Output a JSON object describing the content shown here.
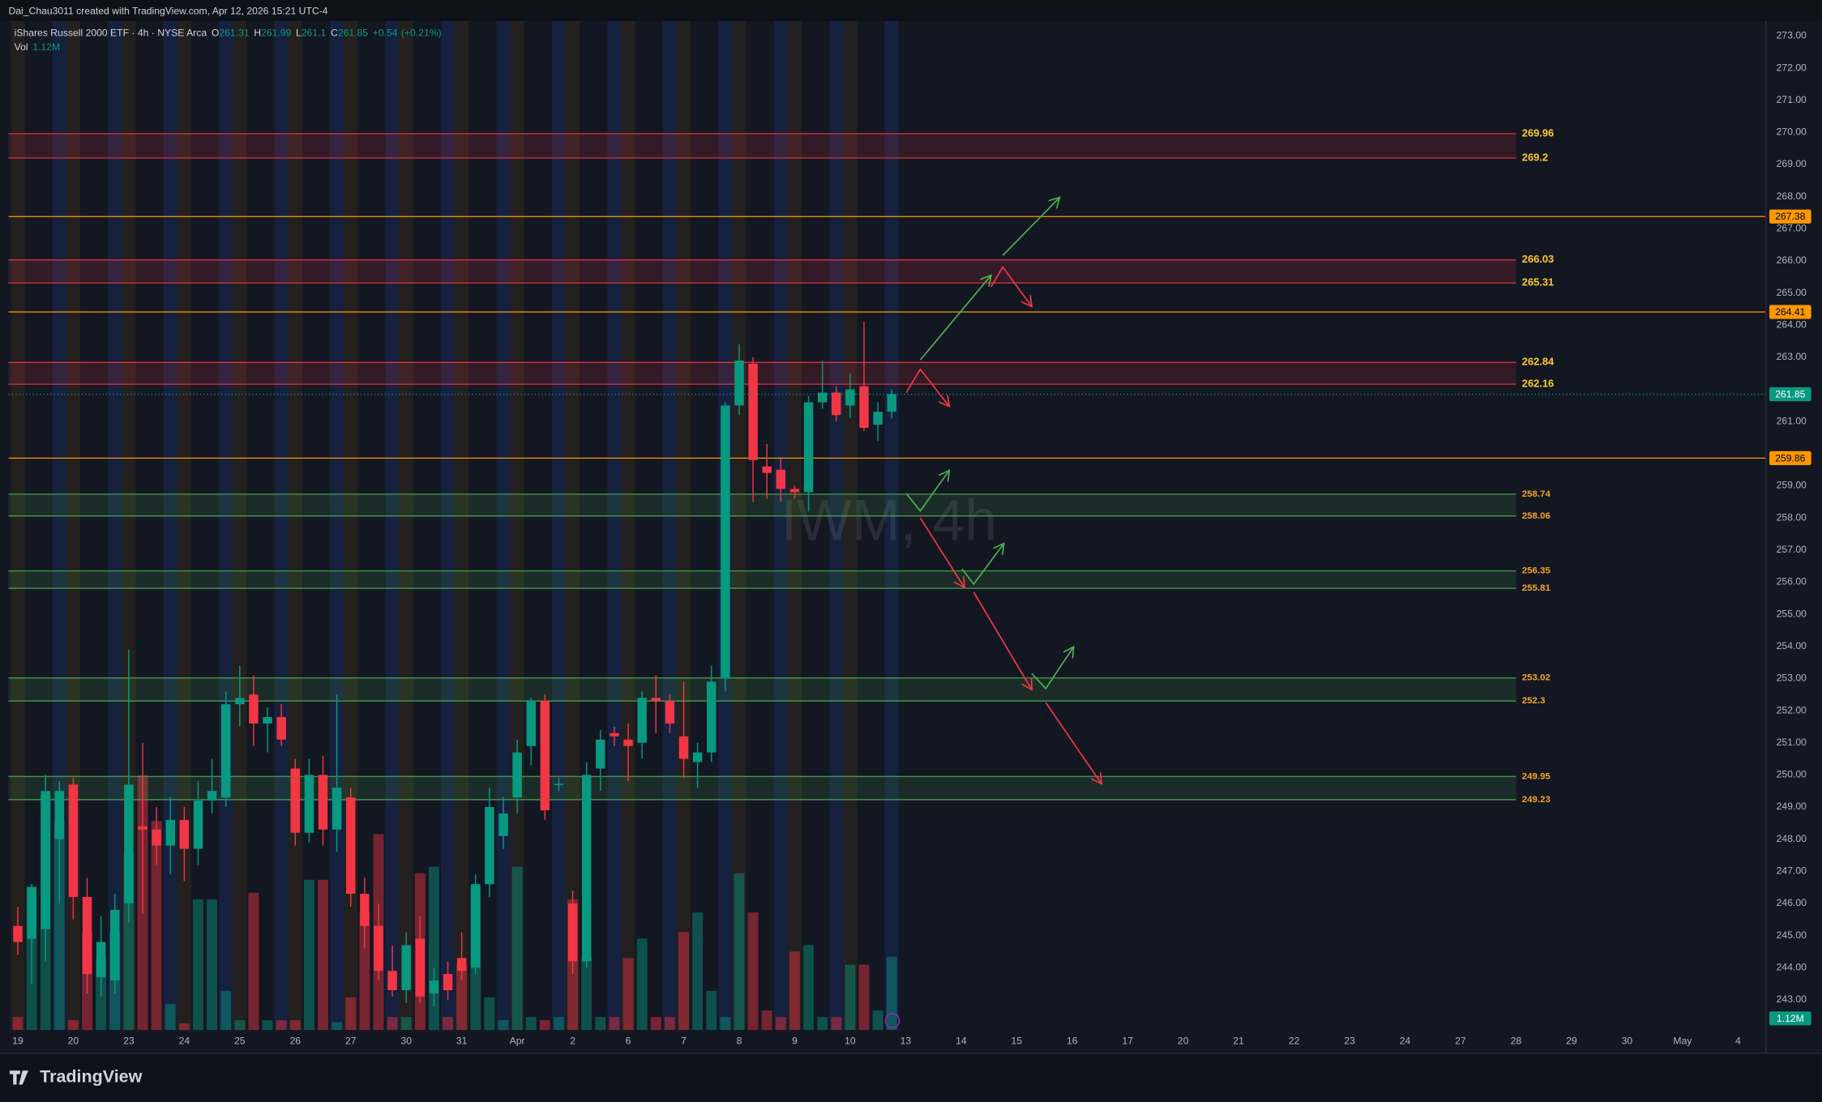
{
  "header": {
    "credit": "Dai_Chau3011 created with TradingView.com, Apr 12, 2026 15:21 UTC-4"
  },
  "footer": {
    "brand": "TradingView"
  },
  "chart_data": {
    "type": "candlestick",
    "title": "iShares Russell 2000 ETF · 4h · NYSE Arca",
    "watermark": "IWM, 4h",
    "legend_labels": [
      "O",
      "H",
      "L",
      "C"
    ],
    "change_label": "+0.54",
    "change_pct_label": "(+0.21%)",
    "volume_name": "Vol",
    "volume_label": "1.12M",
    "up_color": "#089981",
    "down_color": "#f23645",
    "x_labels": [
      "19",
      "20",
      "23",
      "24",
      "25",
      "26",
      "27",
      "30",
      "31",
      "Apr",
      "2",
      "6",
      "7",
      "8",
      "9",
      "10",
      "13",
      "14",
      "15",
      "16",
      "17",
      "20",
      "21",
      "22",
      "23",
      "24",
      "27",
      "28",
      "29",
      "30",
      "May",
      "4"
    ],
    "open": [
      245.3,
      244.9,
      245.2,
      248.0,
      249.7,
      246.2,
      243.7,
      243.6,
      246.0,
      248.4,
      248.3,
      247.8,
      248.6,
      247.7,
      249.2,
      249.3,
      252.2,
      252.5,
      251.6,
      251.8,
      250.2,
      248.2,
      250.0,
      248.3,
      249.3,
      246.3,
      245.3,
      243.9,
      243.3,
      244.9,
      243.2,
      243.8,
      244.3,
      244.0,
      246.6,
      248.1,
      249.3,
      250.9,
      252.3,
      249.68,
      246.0,
      244.2,
      250.2,
      251.3,
      251.1,
      251.0,
      252.4,
      252.3,
      251.2,
      250.4,
      250.7,
      253.0,
      261.5,
      262.8,
      259.6,
      259.5,
      258.9,
      258.8,
      261.6,
      261.9,
      261.5,
      262.1,
      260.9,
      261.31
    ],
    "high": [
      245.9,
      246.6,
      250.0,
      249.8,
      249.9,
      246.8,
      245.6,
      246.3,
      253.9,
      251.0,
      249.0,
      249.3,
      249.0,
      249.8,
      250.5,
      252.6,
      253.4,
      253.1,
      252.1,
      252.2,
      250.5,
      250.5,
      250.6,
      252.5,
      249.6,
      246.8,
      246.0,
      244.7,
      245.1,
      245.6,
      244.0,
      244.2,
      245.1,
      246.9,
      249.6,
      249.3,
      251.1,
      252.4,
      252.5,
      249.9,
      246.4,
      250.4,
      251.4,
      251.5,
      251.6,
      252.6,
      253.1,
      252.5,
      252.9,
      251.0,
      253.4,
      261.6,
      263.4,
      263.0,
      260.3,
      259.9,
      259.0,
      261.8,
      262.9,
      262.1,
      262.5,
      264.1,
      261.6,
      261.99
    ],
    "low": [
      244.4,
      243.5,
      244.2,
      246.0,
      245.5,
      243.2,
      243.1,
      243.2,
      245.4,
      245.7,
      247.2,
      246.9,
      246.7,
      247.2,
      248.8,
      249.0,
      251.5,
      250.9,
      250.7,
      250.9,
      247.8,
      247.9,
      247.8,
      247.6,
      245.9,
      244.6,
      243.6,
      243.1,
      242.9,
      242.9,
      242.8,
      243.0,
      243.6,
      243.8,
      246.2,
      247.7,
      248.8,
      250.3,
      248.6,
      249.5,
      243.8,
      244.0,
      249.5,
      250.9,
      249.8,
      250.5,
      251.3,
      251.3,
      249.9,
      249.6,
      250.4,
      252.6,
      261.2,
      258.5,
      258.6,
      258.5,
      258.6,
      258.2,
      261.4,
      261.0,
      261.1,
      260.7,
      260.4,
      261.1
    ],
    "close": [
      244.8,
      246.5,
      249.5,
      249.5,
      246.2,
      243.8,
      244.8,
      245.8,
      249.7,
      248.3,
      247.8,
      248.6,
      247.7,
      249.2,
      249.5,
      252.2,
      252.4,
      251.6,
      251.8,
      251.1,
      248.2,
      250.0,
      248.3,
      249.6,
      246.3,
      245.3,
      243.9,
      243.3,
      244.7,
      243.1,
      243.6,
      243.3,
      243.9,
      246.6,
      249.0,
      248.8,
      250.7,
      252.3,
      248.9,
      249.72,
      244.2,
      250.0,
      251.1,
      251.2,
      250.9,
      252.4,
      252.3,
      251.6,
      250.5,
      250.7,
      252.9,
      261.5,
      262.9,
      259.8,
      259.4,
      258.9,
      258.8,
      261.6,
      261.9,
      261.2,
      262.0,
      260.8,
      261.3,
      261.85
    ],
    "volume": [
      0.2,
      2.2,
      3.6,
      3.2,
      0.15,
      1.5,
      1.1,
      1.5,
      2.7,
      3.9,
      3.2,
      0.4,
      0.1,
      2.0,
      2.0,
      0.6,
      0.15,
      2.1,
      0.15,
      0.15,
      0.15,
      2.3,
      2.3,
      0.12,
      0.5,
      1.8,
      3.0,
      0.2,
      0.2,
      2.4,
      2.5,
      0.2,
      1.0,
      2.2,
      0.5,
      0.15,
      2.5,
      0.2,
      0.15,
      0.2,
      2.0,
      1.1,
      0.2,
      0.2,
      1.1,
      1.4,
      0.2,
      0.2,
      1.5,
      1.8,
      0.6,
      0.2,
      2.4,
      1.8,
      0.3,
      0.2,
      1.2,
      1.3,
      0.2,
      0.2,
      1.0,
      1.0,
      0.3,
      1.12
    ],
    "volume_lim": [
      0,
      15.45
    ],
    "ylim": [
      242.06,
      273.47
    ],
    "yticks": [
      {
        "value": 243,
        "label": "243.00"
      },
      {
        "value": 244,
        "label": "244.00"
      },
      {
        "value": 245,
        "label": "245.00"
      },
      {
        "value": 246,
        "label": "246.00"
      },
      {
        "value": 247,
        "label": "247.00"
      },
      {
        "value": 248,
        "label": "248.00"
      },
      {
        "value": 249,
        "label": "249.00"
      },
      {
        "value": 250,
        "label": "250.00"
      },
      {
        "value": 251,
        "label": "251.00"
      },
      {
        "value": 252,
        "label": "252.00"
      },
      {
        "value": 253,
        "label": "253.00"
      },
      {
        "value": 254,
        "label": "254.00"
      },
      {
        "value": 255,
        "label": "255.00"
      },
      {
        "value": 256,
        "label": "256.00"
      },
      {
        "value": 257,
        "label": "257.00"
      },
      {
        "value": 258,
        "label": "258.00"
      },
      {
        "value": 259,
        "label": "259.00"
      },
      {
        "value": 261,
        "label": "261.00"
      },
      {
        "value": 263,
        "label": "263.00"
      },
      {
        "value": 264,
        "label": "264.00"
      },
      {
        "value": 265,
        "label": "265.00"
      },
      {
        "value": 266,
        "label": "266.00"
      },
      {
        "value": 267,
        "label": "267.00"
      },
      {
        "value": 268,
        "label": "268.00"
      },
      {
        "value": 269,
        "label": "269.00"
      },
      {
        "value": 270,
        "label": "270.00"
      },
      {
        "value": 271,
        "label": "271.00"
      },
      {
        "value": 272,
        "label": "272.00"
      },
      {
        "value": 273,
        "label": "273.00"
      }
    ],
    "zones": [
      {
        "top": 269.96,
        "bottom": 269.2,
        "color": "#f23645",
        "label_color": "#ffca28"
      },
      {
        "top": 266.03,
        "bottom": 265.31,
        "color": "#f23645",
        "label_color": "#ffca28"
      },
      {
        "top": 262.84,
        "bottom": 262.16,
        "color": "#f23645",
        "label_color": "#ffca28"
      },
      {
        "top": 258.74,
        "bottom": 258.06,
        "color": "#4caf50",
        "label_color": "#f5a623"
      },
      {
        "top": 256.35,
        "bottom": 255.81,
        "color": "#4caf50",
        "label_color": "#f5a623"
      },
      {
        "top": 253.02,
        "bottom": 252.3,
        "color": "#4caf50",
        "label_color": "#f5a623"
      },
      {
        "top": 249.95,
        "bottom": 249.23,
        "color": "#4caf50",
        "label_color": "#f5a623"
      }
    ],
    "lines": [
      {
        "value": 267.38,
        "color": "#ff9800"
      },
      {
        "value": 264.41,
        "color": "#ff9800"
      },
      {
        "value": 259.86,
        "color": "#ff9800"
      }
    ]
  }
}
